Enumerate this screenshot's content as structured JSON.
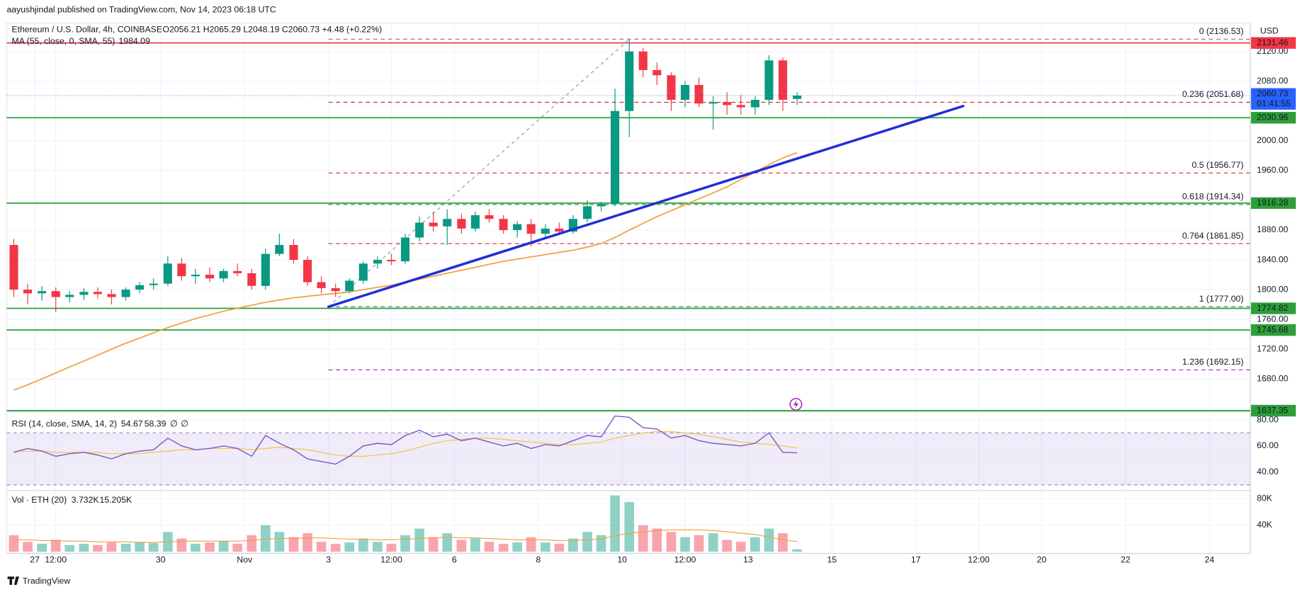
{
  "publisher": "aayushjindal published on TradingView.com, Nov 14, 2023 06:18 UTC",
  "chart_data": {
    "type": "candlestick",
    "title": "Ethereum / U.S. Dollar, 4h, COINBASE",
    "ohlc_text": "O2056.21 H2065.29 L2048.19 C2060.73 +4.48 (+0.22%)",
    "currency": "USD",
    "countdown": "01:41:55",
    "footer": "TradingView",
    "x": [
      26.5,
      26.83,
      27.17,
      27.5,
      27.83,
      28.17,
      28.5,
      28.83,
      29.17,
      29.5,
      29.83,
      30.17,
      30.5,
      30.83,
      31.17,
      31.5,
      31.83,
      32.17,
      32.5,
      32.83,
      33.17,
      33.5,
      33.83,
      34.17,
      34.5,
      34.83,
      35.17,
      35.5,
      35.83,
      36.17,
      36.5,
      36.83,
      37.17,
      37.5,
      37.83,
      38.17,
      38.5,
      38.83,
      39.17,
      39.5,
      39.83,
      40.17,
      40.5,
      40.83,
      41.17,
      41.5,
      41.83,
      42.17,
      42.5,
      42.83,
      43.17,
      43.5,
      43.83,
      44.17,
      44.5,
      44.83,
      45.17
    ],
    "open": [
      1860,
      1800,
      1795,
      1798,
      1790,
      1793,
      1797,
      1794,
      1790,
      1800,
      1806,
      1808,
      1835,
      1818,
      1820,
      1815,
      1825,
      1822,
      1805,
      1848,
      1860,
      1840,
      1810,
      1802,
      1798,
      1812,
      1835,
      1840,
      1838,
      1870,
      1890,
      1885,
      1895,
      1882,
      1900,
      1895,
      1880,
      1888,
      1875,
      1882,
      1878,
      1895,
      1912,
      1915,
      2040,
      2120,
      2095,
      2088,
      2055,
      2075,
      2050,
      2052,
      2048,
      2045,
      2055,
      2108,
      2056.21
    ],
    "high": [
      1868,
      1808,
      1805,
      1803,
      1798,
      1802,
      1803,
      1800,
      1803,
      1810,
      1815,
      1845,
      1842,
      1828,
      1830,
      1828,
      1835,
      1828,
      1855,
      1875,
      1868,
      1845,
      1818,
      1808,
      1815,
      1838,
      1845,
      1848,
      1875,
      1898,
      1905,
      1908,
      1902,
      1905,
      1908,
      1900,
      1892,
      1895,
      1888,
      1890,
      1900,
      1920,
      1918,
      2070,
      2136.53,
      2125,
      2105,
      2092,
      2080,
      2085,
      2060,
      2065,
      2062,
      2060,
      2115,
      2112,
      2065.29
    ],
    "low": [
      1790,
      1780,
      1785,
      1770,
      1783,
      1786,
      1788,
      1780,
      1785,
      1795,
      1800,
      1805,
      1812,
      1808,
      1810,
      1810,
      1818,
      1800,
      1800,
      1845,
      1835,
      1805,
      1795,
      1790,
      1795,
      1808,
      1828,
      1833,
      1835,
      1865,
      1878,
      1860,
      1875,
      1878,
      1890,
      1875,
      1870,
      1858,
      1868,
      1873,
      1875,
      1890,
      1905,
      1912,
      2005,
      2085,
      2075,
      2040,
      2045,
      2045,
      2015,
      2035,
      2035,
      2035,
      2048,
      2040,
      2048.19
    ],
    "close": [
      1800,
      1795,
      1798,
      1790,
      1793,
      1797,
      1794,
      1790,
      1800,
      1806,
      1808,
      1835,
      1818,
      1820,
      1815,
      1825,
      1822,
      1805,
      1848,
      1860,
      1840,
      1810,
      1802,
      1798,
      1812,
      1835,
      1840,
      1838,
      1870,
      1890,
      1885,
      1895,
      1882,
      1900,
      1895,
      1880,
      1888,
      1875,
      1882,
      1878,
      1895,
      1912,
      1915,
      2040,
      2120,
      2095,
      2088,
      2055,
      2075,
      2050,
      2052,
      2048,
      2045,
      2055,
      2108,
      2055,
      2060.73
    ],
    "up_color": "#089981",
    "down_color": "#f23645",
    "xlim": [
      26.37,
      55.97
    ],
    "xticks": [
      27,
      {
        "value": 27.5,
        "label": "12:00"
      },
      30,
      {
        "value": 32,
        "label": "Nov"
      },
      {
        "value": 34,
        "label": "3"
      },
      {
        "value": 35.5,
        "label": "12:00"
      },
      {
        "value": 37,
        "label": "6"
      },
      {
        "value": 39,
        "label": "8"
      },
      {
        "value": 41,
        "label": "10"
      },
      {
        "value": 42.5,
        "label": "12:00"
      },
      {
        "value": 44,
        "label": "13"
      },
      {
        "value": 46,
        "label": "15"
      },
      {
        "value": 48,
        "label": "17"
      },
      {
        "value": 49.5,
        "label": "12:00"
      },
      {
        "value": 51,
        "label": "20"
      },
      {
        "value": 53,
        "label": "22"
      },
      {
        "value": 55,
        "label": "24"
      }
    ],
    "ylim": [
      1637,
      2158
    ],
    "yticks": [
      {
        "value": 1680,
        "label": "1680.00"
      },
      {
        "value": 1720,
        "label": "1720.00"
      },
      {
        "value": 1760,
        "label": "1760.00"
      },
      {
        "value": 1800,
        "label": "1800.00"
      },
      {
        "value": 1840,
        "label": "1840.00"
      },
      {
        "value": 1880,
        "label": "1880.00"
      },
      {
        "value": 1960,
        "label": "1960.00"
      },
      {
        "value": 2000,
        "label": "2000.00"
      },
      {
        "value": 2080,
        "label": "2080.00"
      },
      {
        "value": 2120,
        "label": "2120.00"
      }
    ],
    "grid": true,
    "ma": {
      "label": "MA (55, close, 0, SMA, 55)",
      "color": "#f0a040",
      "values": [
        1665,
        1672,
        1680,
        1688,
        1696,
        1704,
        1712,
        1720,
        1728,
        1735,
        1742,
        1749,
        1755,
        1761,
        1766,
        1771,
        1775,
        1779,
        1783,
        1786,
        1789,
        1791,
        1793,
        1795,
        1797,
        1800,
        1803,
        1806,
        1810,
        1814,
        1818,
        1822,
        1826,
        1830,
        1834,
        1838,
        1841,
        1844,
        1847,
        1850,
        1853,
        1857,
        1862,
        1870,
        1880,
        1889,
        1898,
        1906,
        1914,
        1922,
        1930,
        1938,
        1948,
        1958,
        1968,
        1977,
        1984.09
      ]
    },
    "fib": {
      "start": 34,
      "values": [
        2136.53,
        2051.68,
        1956.77,
        1914.34,
        1861.85,
        1777,
        1692.15
      ],
      "value_labels": [
        "0 (2136.53)",
        "0.236 (2051.68)",
        "0.5 (1956.77)",
        "0.618 (1914.34)",
        "0.764 (1861.85)",
        "1 (1777.00)",
        "1.236 (1692.15)"
      ],
      "colors": [
        "#787b86",
        "#d32f2f",
        "#d32f2f",
        "#2e9e3a",
        "#d32f2f",
        "#5b7ba6",
        "#9c27b0"
      ]
    },
    "levels": {
      "values": [
        2030.96,
        1916.28,
        1774.82,
        1745.68,
        1637.35
      ],
      "color": "#2e9e3a"
    },
    "resistance": {
      "values": [
        2131.46
      ],
      "color": "#f23645"
    },
    "trendline": {
      "x": [
        34,
        49.13
      ],
      "values": [
        1777,
        2046.7
      ],
      "color": "#1f2ed8"
    },
    "fib_anchor": {
      "x": [
        34,
        41.17
      ],
      "values": [
        1777,
        2136.53
      ],
      "color": "#9598a1"
    },
    "rsi": {
      "label": "RSI (14, close, SMA, 14, 2)",
      "na_labels": [
        "∅",
        "∅"
      ],
      "color": "#7e57c2",
      "ma_color": "#f5c242",
      "ylim": [
        27,
        85
      ],
      "band": [
        30,
        70
      ],
      "yticks": [
        {
          "value": 40,
          "label": "40.00"
        },
        {
          "value": 60,
          "label": "60.00"
        },
        {
          "value": 80,
          "label": "80.00"
        }
      ],
      "values": [
        55,
        58,
        56,
        52,
        54,
        55,
        53,
        50,
        54,
        56,
        57,
        66,
        60,
        57,
        58,
        60,
        58,
        52,
        68,
        62,
        57,
        50,
        48,
        46,
        52,
        60,
        62,
        61,
        68,
        72,
        67,
        69,
        64,
        66,
        63,
        60,
        62,
        58,
        61,
        60,
        64,
        68,
        67,
        83,
        82,
        74,
        73,
        66,
        68,
        64,
        62,
        61,
        60,
        62,
        70,
        55,
        54.67
      ],
      "ma_values": [
        56,
        56,
        56,
        55,
        55,
        55,
        55,
        54,
        54,
        54,
        55,
        56,
        57,
        57,
        58,
        58,
        58,
        57,
        58,
        59,
        58,
        57,
        55,
        53,
        52,
        52,
        53,
        54,
        56,
        59,
        62,
        64,
        65,
        66,
        66,
        65,
        64,
        63,
        62,
        61,
        61,
        62,
        63,
        66,
        68,
        70,
        71,
        71,
        70,
        69,
        67,
        65,
        63,
        62,
        61,
        60,
        58.39
      ]
    },
    "volume": {
      "label": "Vol · ETH (20)",
      "last_labels": [
        "3.732K",
        "15.205K"
      ],
      "ma_color": "#f0a040",
      "ylim": [
        0,
        90
      ],
      "yticks": [
        {
          "value": 40,
          "label": "40K"
        },
        {
          "value": 80,
          "label": "80K"
        }
      ],
      "values": [
        25,
        15,
        12,
        18,
        10,
        12,
        10,
        14,
        12,
        15,
        13,
        30,
        20,
        12,
        14,
        16,
        12,
        25,
        40,
        30,
        22,
        28,
        15,
        12,
        14,
        20,
        15,
        12,
        25,
        35,
        22,
        28,
        18,
        20,
        15,
        12,
        14,
        22,
        14,
        12,
        20,
        30,
        25,
        85,
        75,
        40,
        35,
        30,
        22,
        25,
        28,
        18,
        15,
        22,
        35,
        28,
        3.732
      ],
      "ma_values": [
        18,
        18,
        17,
        17,
        16,
        16,
        15,
        15,
        15,
        14,
        14,
        15,
        16,
        16,
        16,
        16,
        16,
        17,
        19,
        20,
        20,
        21,
        21,
        20,
        19,
        19,
        18,
        18,
        19,
        20,
        21,
        22,
        21,
        21,
        20,
        19,
        18,
        18,
        18,
        17,
        17,
        18,
        19,
        24,
        28,
        30,
        32,
        33,
        33,
        33,
        32,
        30,
        28,
        26,
        22,
        18,
        15.205
      ]
    }
  }
}
